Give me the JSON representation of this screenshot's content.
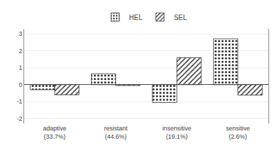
{
  "chart_data": {
    "type": "bar",
    "categories": [
      "adaptive\n(33.7%)",
      "resistant\n(44.6%)",
      "insensitive\n(19.1%)",
      "sensitive\n(2.6%)"
    ],
    "series": [
      {
        "name": "HEL",
        "color": "#f0f0f0",
        "values": [
          -0.3,
          0.65,
          -1.05,
          2.72
        ]
      },
      {
        "name": "SEL",
        "color": "#707070",
        "values": [
          -0.6,
          -0.05,
          1.6,
          -0.62
        ]
      }
    ],
    "ylim": [
      -2.3,
      3.3
    ],
    "yticks": [
      -2,
      -1,
      0,
      1,
      2,
      3
    ],
    "grid": true,
    "legend": "top"
  }
}
